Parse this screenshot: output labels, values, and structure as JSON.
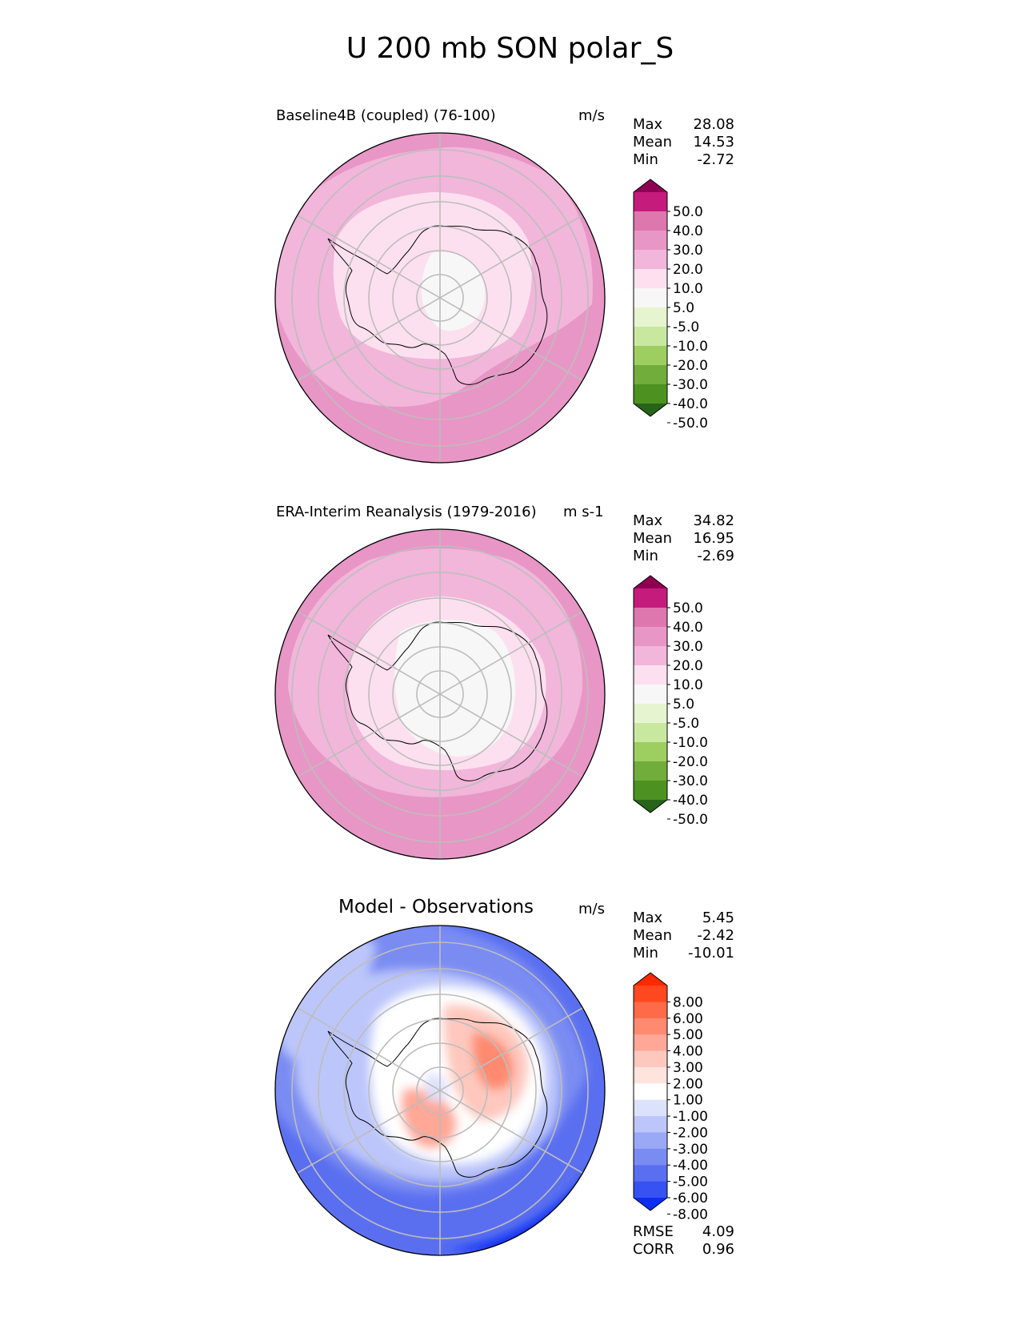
{
  "figure_title": "U 200 mb SON polar_S",
  "panels": [
    {
      "title": "Baseline4B (coupled) (76-100)",
      "units": "m/s",
      "stats": {
        "labels": [
          "Max",
          "Mean",
          "Min"
        ],
        "values": [
          "28.08",
          "14.53",
          "-2.72"
        ]
      },
      "colorbar": {
        "ticks": [
          "50.0",
          "40.0",
          "30.0",
          "20.0",
          "10.0",
          "5.0",
          "-5.0",
          "-10.0",
          "-20.0",
          "-30.0",
          "-40.0",
          "-50.0"
        ],
        "colors": [
          "#8e0152",
          "#c51b7d",
          "#de77ae",
          "#e896c6",
          "#f1b6da",
          "#fde0ef",
          "#f7f7f7",
          "#e6f5d0",
          "#c8e8a0",
          "#9dce60",
          "#71ad3a",
          "#4d9221",
          "#276419"
        ]
      }
    },
    {
      "title": "ERA-Interim Reanalysis (1979-2016)",
      "units": "m s-1",
      "stats": {
        "labels": [
          "Max",
          "Mean",
          "Min"
        ],
        "values": [
          "34.82",
          "16.95",
          "-2.69"
        ]
      },
      "colorbar": {
        "ticks": [
          "50.0",
          "40.0",
          "30.0",
          "20.0",
          "10.0",
          "5.0",
          "-5.0",
          "-10.0",
          "-20.0",
          "-30.0",
          "-40.0",
          "-50.0"
        ],
        "colors": [
          "#8e0152",
          "#c51b7d",
          "#de77ae",
          "#e896c6",
          "#f1b6da",
          "#fde0ef",
          "#f7f7f7",
          "#e6f5d0",
          "#c8e8a0",
          "#9dce60",
          "#71ad3a",
          "#4d9221",
          "#276419"
        ]
      }
    },
    {
      "title": "Model - Observations",
      "units": "m/s",
      "stats": {
        "labels": [
          "Max",
          "Mean",
          "Min"
        ],
        "values": [
          "5.45",
          "-2.42",
          "-10.01"
        ]
      },
      "colorbar": {
        "ticks": [
          "8.00",
          "6.00",
          "5.00",
          "4.00",
          "3.00",
          "2.00",
          "1.00",
          "-1.00",
          "-2.00",
          "-3.00",
          "-4.00",
          "-5.00",
          "-6.00",
          "-8.00"
        ],
        "colors": [
          "#ff2a00",
          "#ff4820",
          "#ff6a48",
          "#ff8a70",
          "#ffa898",
          "#ffc8be",
          "#ffe4de",
          "#ffffff",
          "#dde2fc",
          "#bcc6fa",
          "#9aa9f6",
          "#7a8cf2",
          "#5a6ff0",
          "#3652f2",
          "#0a2ef7"
        ]
      },
      "metrics": {
        "labels": [
          "RMSE",
          "CORR"
        ],
        "values": [
          "4.09",
          "0.96"
        ]
      }
    }
  ],
  "chart_data": {
    "type": "heatmap",
    "title": "U 200 mb SON polar_S",
    "projection": "south polar stereographic",
    "maps": [
      {
        "name": "Baseline4B (coupled) (76-100)",
        "units": "m/s",
        "max": 28.08,
        "mean": 14.53,
        "min": -2.72,
        "levels": [
          -50,
          -40,
          -30,
          -20,
          -10,
          -5,
          5,
          10,
          20,
          30,
          40,
          50
        ]
      },
      {
        "name": "ERA-Interim Reanalysis (1979-2016)",
        "units": "m s-1",
        "max": 34.82,
        "mean": 16.95,
        "min": -2.69,
        "levels": [
          -50,
          -40,
          -30,
          -20,
          -10,
          -5,
          5,
          10,
          20,
          30,
          40,
          50
        ]
      },
      {
        "name": "Model - Observations",
        "units": "m/s",
        "max": 5.45,
        "mean": -2.42,
        "min": -10.01,
        "rmse": 4.09,
        "corr": 0.96,
        "levels": [
          -8,
          -6,
          -5,
          -4,
          -3,
          -2,
          -1,
          1,
          2,
          3,
          4,
          5,
          6,
          8
        ]
      }
    ]
  }
}
